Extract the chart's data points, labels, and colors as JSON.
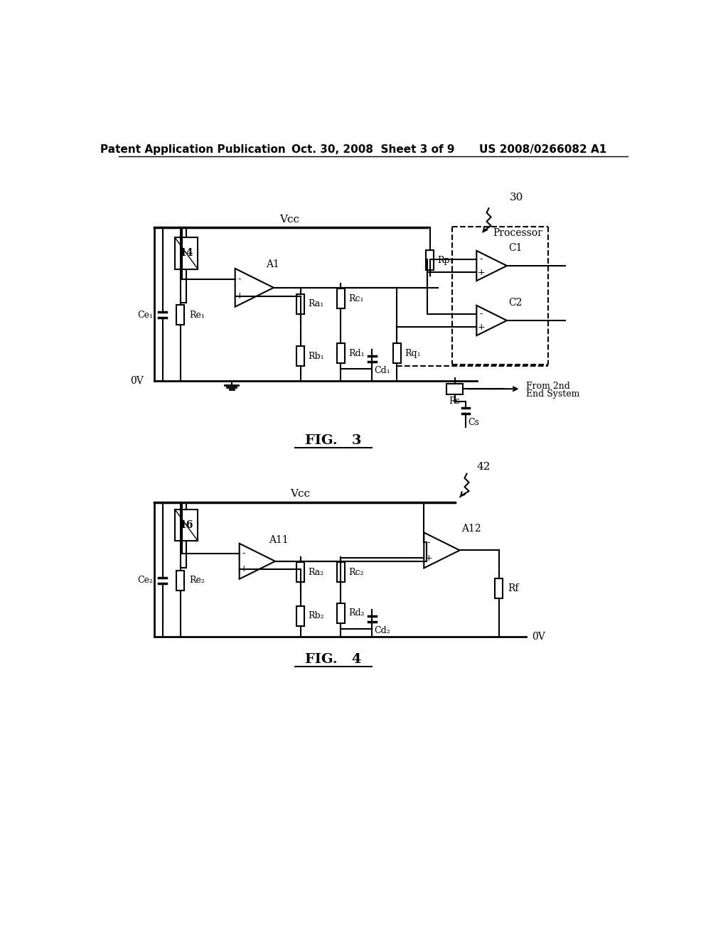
{
  "title_left": "Patent Application Publication",
  "title_center": "Oct. 30, 2008  Sheet 3 of 9",
  "title_right": "US 2008/0266082 A1",
  "fig3_label": "FIG.   3",
  "fig4_label": "FIG.   4",
  "background_color": "#ffffff",
  "line_color": "#000000",
  "fig3_number": "30",
  "fig4_number": "42"
}
